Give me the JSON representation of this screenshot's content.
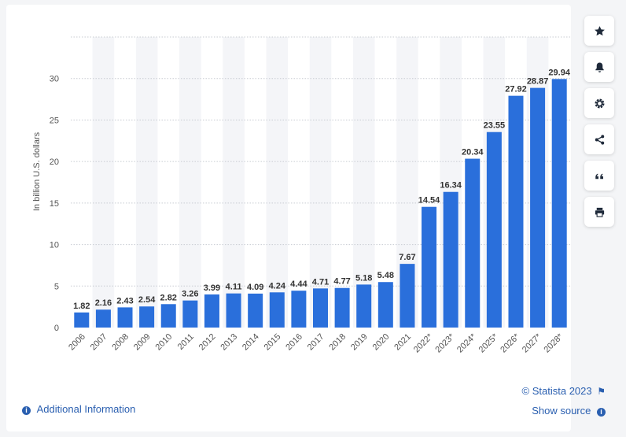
{
  "chart_data": {
    "type": "bar",
    "title": "",
    "xlabel": "",
    "ylabel": "In billion U.S. dollars",
    "ylim": [
      0,
      35
    ],
    "yticks": [
      0,
      5,
      10,
      15,
      20,
      25,
      30
    ],
    "grid": true,
    "bar_color": "#2a6fdb",
    "categories": [
      "2006",
      "2007",
      "2008",
      "2009",
      "2010",
      "2011",
      "2012",
      "2013",
      "2014",
      "2015",
      "2016",
      "2017",
      "2018",
      "2019",
      "2020",
      "2021",
      "2022*",
      "2023*",
      "2024*",
      "2025*",
      "2026*",
      "2027*",
      "2028*"
    ],
    "values": [
      1.82,
      2.16,
      2.43,
      2.54,
      2.82,
      3.26,
      3.99,
      4.11,
      4.09,
      4.24,
      4.44,
      4.71,
      4.77,
      5.18,
      5.48,
      7.67,
      14.54,
      16.34,
      20.34,
      23.55,
      27.92,
      28.87,
      29.94
    ],
    "value_labels": [
      "1.82",
      "2.16",
      "2.43",
      "2.54",
      "2.82",
      "3.26",
      "3.99",
      "4.11",
      "4.09",
      "4.24",
      "4.44",
      "4.71",
      "4.77",
      "5.18",
      "5.48",
      "7.67",
      "14.54",
      "16.34",
      "20.34",
      "23.55",
      "27.92",
      "28.87",
      "29.94"
    ]
  },
  "footer": {
    "additional_info": "Additional Information",
    "copyright": "© Statista 2023",
    "show_source": "Show source"
  },
  "toolbar": {
    "icons": [
      "star-icon",
      "bell-icon",
      "gear-icon",
      "share-icon",
      "quote-icon",
      "print-icon"
    ]
  }
}
